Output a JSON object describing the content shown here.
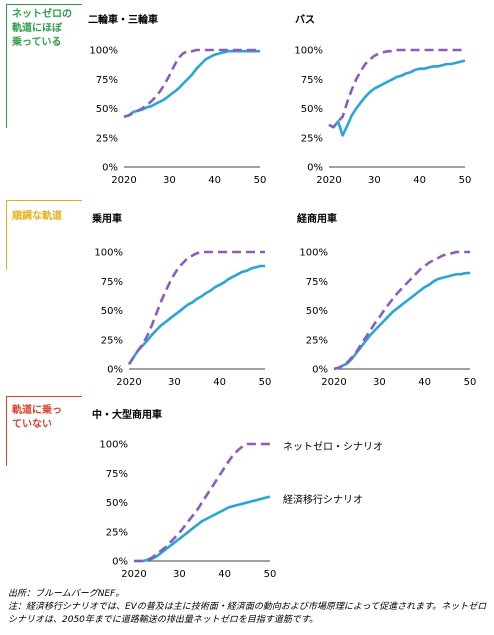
{
  "sections": [
    {
      "label": "ネットゼロの\n軌道にほぼ\n乗っている",
      "color": "#2e9d4a"
    },
    {
      "label": "順調な軌道",
      "color": "#e3b21a"
    },
    {
      "label": "軌道に乗っ\nていない",
      "color": "#d9402b"
    }
  ],
  "colors": {
    "ets": "#2aa5d6",
    "nzs": "#8b5cc0"
  },
  "legend": {
    "nzs": "ネットゼロ・シナリオ",
    "ets": "経済移行シナリオ"
  },
  "footer": {
    "source": "出所：ブルームバーグNEF。",
    "note": "注：経済移行シナリオでは、EVの普及は主に技術面・経済面の動向および市場原理によって促進されます。ネットゼロシナリオは、2050年までに道路輸送の排出量ネットゼロを目指す道筋です。"
  },
  "chart_data": [
    {
      "type": "line",
      "title": "二輪車・三輪車",
      "yticks": [
        "100%",
        "75%",
        "50%",
        "25%",
        "0%"
      ],
      "xticks": [
        "2020",
        "30",
        "40",
        "50"
      ],
      "xlim": [
        2020,
        2050
      ],
      "ylim": [
        0,
        100
      ],
      "series": [
        {
          "key": "ets",
          "x": [
            2020,
            2021,
            2022,
            2023,
            2024,
            2025,
            2026,
            2027,
            2028,
            2029,
            2030,
            2031,
            2032,
            2033,
            2034,
            2035,
            2036,
            2037,
            2038,
            2039,
            2040,
            2041,
            2042,
            2043,
            2044,
            2045,
            2046,
            2047,
            2048,
            2049,
            2050
          ],
          "values": [
            43,
            44,
            47,
            48,
            49,
            51,
            52,
            54,
            56,
            58,
            61,
            64,
            67,
            71,
            75,
            79,
            84,
            88,
            92,
            94,
            96,
            97,
            98,
            99,
            99,
            99,
            99,
            99,
            99,
            99,
            99
          ]
        },
        {
          "key": "nzs",
          "x": [
            2020,
            2021,
            2022,
            2023,
            2024,
            2025,
            2026,
            2027,
            2028,
            2029,
            2030,
            2031,
            2032,
            2033,
            2034,
            2035,
            2036,
            2037,
            2038,
            2039,
            2040,
            2041,
            2042,
            2043,
            2044,
            2045,
            2046,
            2047,
            2048,
            2049,
            2050
          ],
          "values": [
            43,
            44,
            46,
            48,
            50,
            53,
            56,
            60,
            65,
            71,
            78,
            86,
            93,
            97,
            99,
            99,
            100,
            100,
            100,
            100,
            100,
            100,
            100,
            100,
            100,
            100,
            100,
            100,
            100,
            100,
            100
          ]
        }
      ]
    },
    {
      "type": "line",
      "title": "バス",
      "yticks": [
        "100%",
        "75%",
        "50%",
        "25%",
        "0%"
      ],
      "xticks": [
        "2020",
        "30",
        "40",
        "50"
      ],
      "xlim": [
        2020,
        2050
      ],
      "ylim": [
        0,
        100
      ],
      "series": [
        {
          "key": "ets",
          "x": [
            2020,
            2021,
            2022,
            2023,
            2024,
            2025,
            2026,
            2027,
            2028,
            2029,
            2030,
            2031,
            2032,
            2033,
            2034,
            2035,
            2036,
            2037,
            2038,
            2039,
            2040,
            2041,
            2042,
            2043,
            2044,
            2045,
            2046,
            2047,
            2048,
            2049,
            2050
          ],
          "values": [
            36,
            34,
            39,
            27,
            35,
            44,
            50,
            55,
            60,
            64,
            67,
            69,
            71,
            73,
            75,
            77,
            78,
            80,
            81,
            83,
            84,
            84,
            85,
            86,
            86,
            87,
            88,
            88,
            89,
            90,
            91
          ]
        },
        {
          "key": "nzs",
          "x": [
            2020,
            2021,
            2022,
            2023,
            2024,
            2025,
            2026,
            2027,
            2028,
            2029,
            2030,
            2031,
            2032,
            2033,
            2034,
            2035,
            2036,
            2037,
            2038,
            2039,
            2040,
            2041,
            2042,
            2043,
            2044,
            2045,
            2046,
            2047,
            2048,
            2049,
            2050
          ],
          "values": [
            36,
            34,
            39,
            43,
            55,
            66,
            75,
            82,
            88,
            92,
            95,
            97,
            98,
            99,
            99,
            100,
            100,
            100,
            100,
            100,
            100,
            100,
            100,
            100,
            100,
            100,
            100,
            100,
            100,
            100,
            100
          ]
        }
      ]
    },
    {
      "type": "line",
      "title": "乗用車",
      "yticks": [
        "100%",
        "75%",
        "50%",
        "25%",
        "0%"
      ],
      "xticks": [
        "2020",
        "30",
        "40",
        "50"
      ],
      "xlim": [
        2020,
        2050
      ],
      "ylim": [
        0,
        100
      ],
      "series": [
        {
          "key": "ets",
          "x": [
            2020,
            2021,
            2022,
            2023,
            2024,
            2025,
            2026,
            2027,
            2028,
            2029,
            2030,
            2031,
            2032,
            2033,
            2034,
            2035,
            2036,
            2037,
            2038,
            2039,
            2040,
            2041,
            2042,
            2043,
            2044,
            2045,
            2046,
            2047,
            2048,
            2049,
            2050
          ],
          "values": [
            4,
            10,
            16,
            20,
            24,
            29,
            33,
            37,
            40,
            43,
            46,
            49,
            52,
            55,
            57,
            60,
            62,
            65,
            67,
            70,
            72,
            74,
            77,
            79,
            81,
            83,
            84,
            86,
            87,
            88,
            88
          ]
        },
        {
          "key": "nzs",
          "x": [
            2020,
            2021,
            2022,
            2023,
            2024,
            2025,
            2026,
            2027,
            2028,
            2029,
            2030,
            2031,
            2032,
            2033,
            2034,
            2035,
            2036,
            2037,
            2038,
            2039,
            2040,
            2041,
            2042,
            2043,
            2044,
            2045,
            2046,
            2047,
            2048,
            2049,
            2050
          ],
          "values": [
            4,
            10,
            16,
            21,
            28,
            37,
            47,
            57,
            66,
            74,
            81,
            87,
            91,
            95,
            97,
            99,
            100,
            100,
            100,
            100,
            100,
            100,
            100,
            100,
            100,
            100,
            100,
            100,
            100,
            100,
            100
          ]
        }
      ]
    },
    {
      "type": "line",
      "title": "経商用車",
      "yticks": [
        "100%",
        "75%",
        "50%",
        "25%",
        "0%"
      ],
      "xticks": [
        "2020",
        "30",
        "40",
        "50"
      ],
      "xlim": [
        2020,
        2050
      ],
      "ylim": [
        0,
        100
      ],
      "series": [
        {
          "key": "ets",
          "x": [
            2020,
            2021,
            2022,
            2023,
            2024,
            2025,
            2026,
            2027,
            2028,
            2029,
            2030,
            2031,
            2032,
            2033,
            2034,
            2035,
            2036,
            2037,
            2038,
            2039,
            2040,
            2041,
            2042,
            2043,
            2044,
            2045,
            2046,
            2047,
            2048,
            2049,
            2050
          ],
          "values": [
            0,
            1,
            3,
            5,
            9,
            14,
            19,
            24,
            29,
            33,
            37,
            41,
            45,
            49,
            52,
            55,
            58,
            61,
            64,
            67,
            70,
            72,
            75,
            77,
            78,
            79,
            80,
            81,
            81,
            82,
            82
          ]
        },
        {
          "key": "nzs",
          "x": [
            2020,
            2021,
            2022,
            2023,
            2024,
            2025,
            2026,
            2027,
            2028,
            2029,
            2030,
            2031,
            2032,
            2033,
            2034,
            2035,
            2036,
            2037,
            2038,
            2039,
            2040,
            2041,
            2042,
            2043,
            2044,
            2045,
            2046,
            2047,
            2048,
            2049,
            2050
          ],
          "values": [
            0,
            1,
            3,
            6,
            10,
            15,
            21,
            27,
            33,
            39,
            44,
            50,
            55,
            60,
            65,
            69,
            73,
            77,
            81,
            85,
            88,
            91,
            93,
            95,
            97,
            98,
            99,
            100,
            100,
            100,
            100
          ]
        }
      ]
    },
    {
      "type": "line",
      "title": "中・大型商用車",
      "yticks": [
        "100%",
        "75%",
        "50%",
        "25%",
        "0%"
      ],
      "xticks": [
        "2020",
        "30",
        "40",
        "50"
      ],
      "xlim": [
        2020,
        2050
      ],
      "ylim": [
        0,
        100
      ],
      "series": [
        {
          "key": "ets",
          "x": [
            2020,
            2021,
            2022,
            2023,
            2024,
            2025,
            2026,
            2027,
            2028,
            2029,
            2030,
            2031,
            2032,
            2033,
            2034,
            2035,
            2036,
            2037,
            2038,
            2039,
            2040,
            2041,
            2042,
            2043,
            2044,
            2045,
            2046,
            2047,
            2048,
            2049,
            2050
          ],
          "values": [
            0,
            0,
            0,
            1,
            2,
            4,
            7,
            10,
            13,
            16,
            19,
            22,
            25,
            28,
            31,
            34,
            36,
            38,
            40,
            42,
            44,
            46,
            47,
            48,
            49,
            50,
            51,
            52,
            53,
            54,
            55
          ]
        },
        {
          "key": "nzs",
          "x": [
            2020,
            2021,
            2022,
            2023,
            2024,
            2025,
            2026,
            2027,
            2028,
            2029,
            2030,
            2031,
            2032,
            2033,
            2034,
            2035,
            2036,
            2037,
            2038,
            2039,
            2040,
            2041,
            2042,
            2043,
            2044,
            2045,
            2046,
            2047,
            2048,
            2049,
            2050
          ],
          "values": [
            0,
            0,
            0,
            1,
            3,
            6,
            9,
            12,
            16,
            20,
            24,
            29,
            34,
            39,
            44,
            50,
            56,
            62,
            68,
            74,
            80,
            86,
            91,
            95,
            98,
            100,
            100,
            100,
            100,
            100,
            100
          ]
        }
      ]
    }
  ]
}
